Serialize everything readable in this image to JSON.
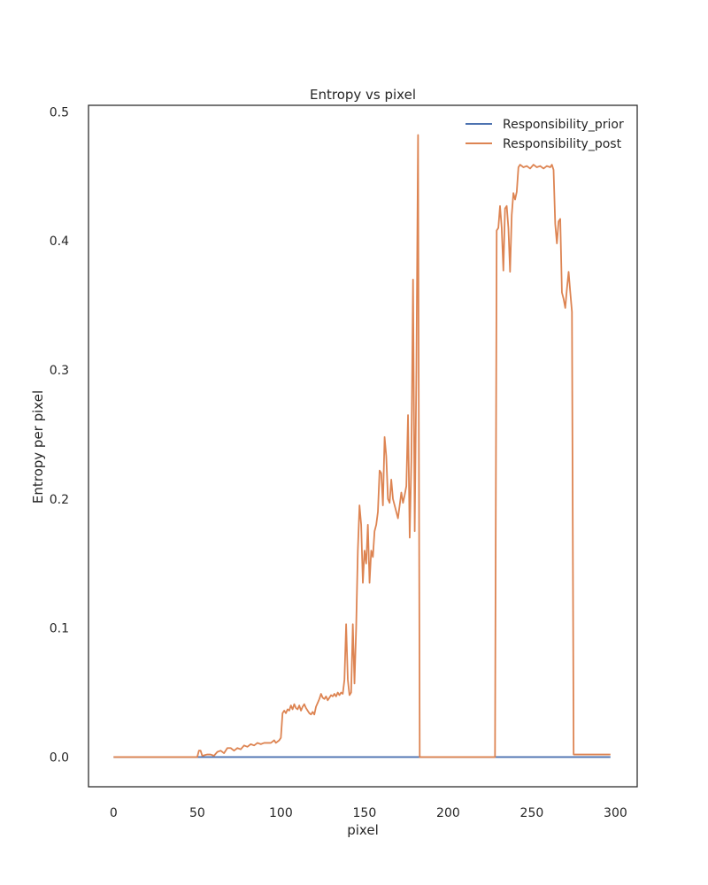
{
  "chart_data": {
    "type": "line",
    "title": "Entropy vs pixel",
    "xlabel": "pixel",
    "ylabel": "Entropy per pixel",
    "xlim": [
      -15,
      313
    ],
    "ylim": [
      -0.023,
      0.505
    ],
    "x_ticks": [
      0,
      50,
      100,
      150,
      200,
      250,
      300
    ],
    "y_ticks": [
      0.0,
      0.1,
      0.2,
      0.3,
      0.4,
      0.5
    ],
    "x_tick_labels": [
      "0",
      "50",
      "100",
      "150",
      "200",
      "250",
      "300"
    ],
    "y_tick_labels": [
      "0.0",
      "0.1",
      "0.2",
      "0.3",
      "0.4",
      "0.5"
    ],
    "grid": false,
    "legend": {
      "position": "top-right"
    },
    "series": [
      {
        "name": " Responsibility_prior",
        "color": "#4c72b0",
        "points": [
          [
            0,
            0.0
          ],
          [
            297,
            0.0
          ]
        ]
      },
      {
        "name": "Responsibility_post",
        "color": "#dd8452",
        "points": [
          [
            0,
            0.0
          ],
          [
            50,
            0.0
          ],
          [
            51,
            0.005
          ],
          [
            52,
            0.005
          ],
          [
            53,
            0.001
          ],
          [
            56,
            0.002
          ],
          [
            58,
            0.002
          ],
          [
            60,
            0.001
          ],
          [
            62,
            0.004
          ],
          [
            64,
            0.005
          ],
          [
            66,
            0.003
          ],
          [
            68,
            0.007
          ],
          [
            70,
            0.007
          ],
          [
            72,
            0.005
          ],
          [
            74,
            0.007
          ],
          [
            76,
            0.006
          ],
          [
            78,
            0.009
          ],
          [
            80,
            0.008
          ],
          [
            82,
            0.01
          ],
          [
            84,
            0.009
          ],
          [
            86,
            0.011
          ],
          [
            88,
            0.01
          ],
          [
            90,
            0.011
          ],
          [
            92,
            0.011
          ],
          [
            94,
            0.011
          ],
          [
            96,
            0.013
          ],
          [
            97,
            0.011
          ],
          [
            99,
            0.013
          ],
          [
            100,
            0.015
          ],
          [
            101,
            0.034
          ],
          [
            102,
            0.036
          ],
          [
            103,
            0.034
          ],
          [
            104,
            0.037
          ],
          [
            105,
            0.036
          ],
          [
            106,
            0.04
          ],
          [
            107,
            0.037
          ],
          [
            108,
            0.041
          ],
          [
            109,
            0.038
          ],
          [
            110,
            0.037
          ],
          [
            111,
            0.04
          ],
          [
            112,
            0.036
          ],
          [
            113,
            0.039
          ],
          [
            114,
            0.041
          ],
          [
            115,
            0.038
          ],
          [
            116,
            0.036
          ],
          [
            117,
            0.034
          ],
          [
            118,
            0.033
          ],
          [
            119,
            0.035
          ],
          [
            120,
            0.033
          ],
          [
            121,
            0.039
          ],
          [
            122,
            0.042
          ],
          [
            123,
            0.045
          ],
          [
            124,
            0.049
          ],
          [
            125,
            0.046
          ],
          [
            126,
            0.045
          ],
          [
            127,
            0.047
          ],
          [
            128,
            0.044
          ],
          [
            129,
            0.046
          ],
          [
            130,
            0.048
          ],
          [
            131,
            0.047
          ],
          [
            132,
            0.049
          ],
          [
            133,
            0.047
          ],
          [
            134,
            0.05
          ],
          [
            135,
            0.048
          ],
          [
            136,
            0.05
          ],
          [
            137,
            0.049
          ],
          [
            138,
            0.06
          ],
          [
            139,
            0.103
          ],
          [
            140,
            0.06
          ],
          [
            141,
            0.048
          ],
          [
            142,
            0.05
          ],
          [
            143,
            0.103
          ],
          [
            144,
            0.057
          ],
          [
            145,
            0.1
          ],
          [
            146,
            0.16
          ],
          [
            147,
            0.195
          ],
          [
            148,
            0.18
          ],
          [
            149,
            0.135
          ],
          [
            150,
            0.16
          ],
          [
            151,
            0.15
          ],
          [
            152,
            0.18
          ],
          [
            153,
            0.135
          ],
          [
            154,
            0.16
          ],
          [
            155,
            0.155
          ],
          [
            156,
            0.175
          ],
          [
            157,
            0.18
          ],
          [
            158,
            0.19
          ],
          [
            159,
            0.222
          ],
          [
            160,
            0.22
          ],
          [
            161,
            0.195
          ],
          [
            162,
            0.248
          ],
          [
            163,
            0.233
          ],
          [
            164,
            0.2
          ],
          [
            165,
            0.197
          ],
          [
            166,
            0.215
          ],
          [
            167,
            0.2
          ],
          [
            168,
            0.195
          ],
          [
            169,
            0.19
          ],
          [
            170,
            0.185
          ],
          [
            171,
            0.195
          ],
          [
            172,
            0.205
          ],
          [
            173,
            0.197
          ],
          [
            174,
            0.203
          ],
          [
            175,
            0.21
          ],
          [
            176,
            0.265
          ],
          [
            177,
            0.17
          ],
          [
            178,
            0.23
          ],
          [
            179,
            0.37
          ],
          [
            180,
            0.175
          ],
          [
            181,
            0.3
          ],
          [
            182,
            0.482
          ],
          [
            183,
            0.0
          ],
          [
            228,
            0.0
          ],
          [
            229,
            0.408
          ],
          [
            230,
            0.41
          ],
          [
            231,
            0.427
          ],
          [
            232,
            0.41
          ],
          [
            233,
            0.377
          ],
          [
            234,
            0.425
          ],
          [
            235,
            0.427
          ],
          [
            236,
            0.41
          ],
          [
            237,
            0.376
          ],
          [
            238,
            0.42
          ],
          [
            239,
            0.437
          ],
          [
            240,
            0.432
          ],
          [
            241,
            0.438
          ],
          [
            242,
            0.457
          ],
          [
            243,
            0.459
          ],
          [
            245,
            0.457
          ],
          [
            247,
            0.458
          ],
          [
            249,
            0.456
          ],
          [
            251,
            0.459
          ],
          [
            253,
            0.457
          ],
          [
            255,
            0.458
          ],
          [
            257,
            0.456
          ],
          [
            259,
            0.458
          ],
          [
            261,
            0.457
          ],
          [
            262,
            0.459
          ],
          [
            263,
            0.455
          ],
          [
            264,
            0.413
          ],
          [
            265,
            0.398
          ],
          [
            266,
            0.415
          ],
          [
            267,
            0.417
          ],
          [
            268,
            0.36
          ],
          [
            269,
            0.355
          ],
          [
            270,
            0.348
          ],
          [
            271,
            0.363
          ],
          [
            272,
            0.376
          ],
          [
            273,
            0.36
          ],
          [
            274,
            0.345
          ],
          [
            275,
            0.002
          ],
          [
            297,
            0.002
          ]
        ]
      }
    ]
  }
}
